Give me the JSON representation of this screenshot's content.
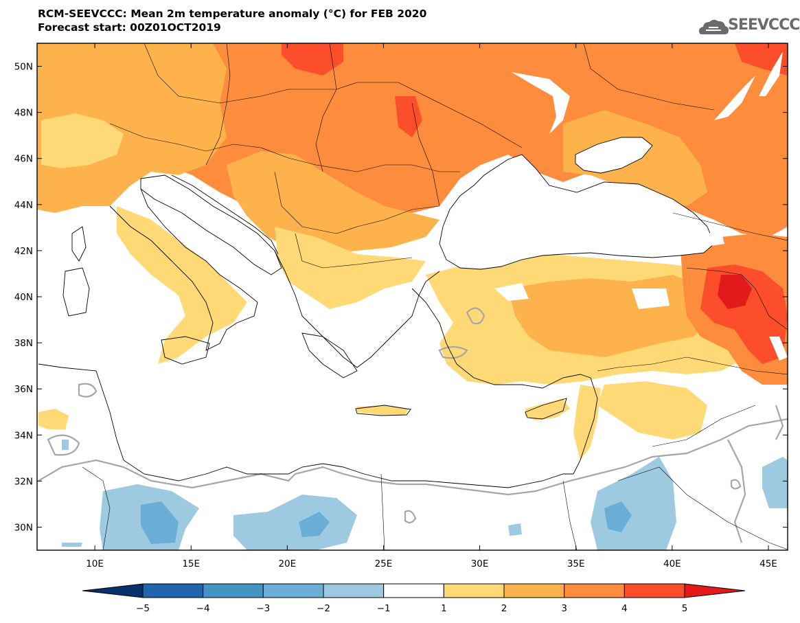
{
  "header": {
    "title_line1": "RCM-SEEVCCC: Mean 2m temperature anomaly (°C) for FEB 2020",
    "title_line2": "Forecast start: 00Z01OCT2019"
  },
  "logo": {
    "text": "SEEVCCC",
    "icon": "cloud-logo-icon"
  },
  "map": {
    "lon_range": [
      7,
      46
    ],
    "lat_range": [
      29,
      51
    ],
    "lon_ticks": [
      "10E",
      "15E",
      "20E",
      "25E",
      "30E",
      "35E",
      "40E",
      "45E"
    ],
    "lat_ticks": [
      "30N",
      "32N",
      "34N",
      "36N",
      "38N",
      "40N",
      "42N",
      "44N",
      "46N",
      "48N",
      "50N"
    ]
  },
  "colorbar": {
    "labels": [
      "−5",
      "−4",
      "−3",
      "−2",
      "−1",
      "1",
      "2",
      "3",
      "4",
      "5"
    ],
    "colors": [
      "#08306b",
      "#2166ac",
      "#4393c3",
      "#6aaed6",
      "#9ecae1",
      "#ffffff",
      "#fed976",
      "#feb24c",
      "#fd8d3c",
      "#fc4e2a",
      "#e31a1c"
    ]
  },
  "palette": {
    "sea": "#ffffff",
    "anom_1_2": "#fed976",
    "anom_2_3": "#feb24c",
    "anom_3_4": "#fd8d3c",
    "anom_4_5": "#fc4e2a",
    "anom_gt5": "#e31a1c",
    "anom_m1_m2": "#9ecae1",
    "anom_m2_m3": "#6aaed6",
    "zero_contour": "#a6a6a6"
  }
}
